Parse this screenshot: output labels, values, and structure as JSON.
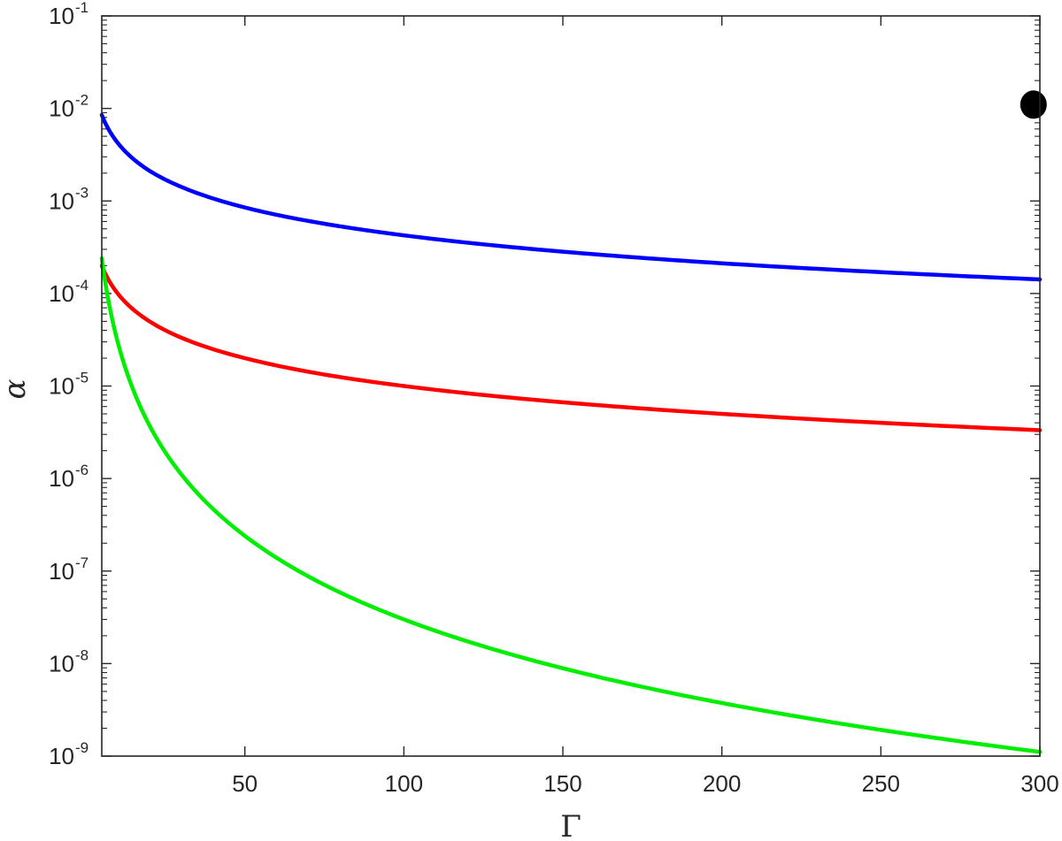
{
  "chart_data": {
    "type": "line",
    "title": "",
    "xlabel": "Γ",
    "ylabel": "α",
    "xlim": [
      5,
      300
    ],
    "ylim": [
      1e-09,
      0.1
    ],
    "yscale": "log",
    "grid": false,
    "x_ticks": [
      50,
      100,
      150,
      200,
      250,
      300
    ],
    "x_tick_labels": [
      "50",
      "100",
      "150",
      "200",
      "250",
      "300"
    ],
    "y_ticks": [
      1e-09,
      1e-08,
      1e-07,
      1e-06,
      1e-05,
      0.0001,
      0.001,
      0.01,
      0.1
    ],
    "y_tick_labels": [
      {
        "base": "10",
        "exp": "-9"
      },
      {
        "base": "10",
        "exp": "-8"
      },
      {
        "base": "10",
        "exp": "-7"
      },
      {
        "base": "10",
        "exp": "-6"
      },
      {
        "base": "10",
        "exp": "-5"
      },
      {
        "base": "10",
        "exp": "-4"
      },
      {
        "base": "10",
        "exp": "-3"
      },
      {
        "base": "10",
        "exp": "-2"
      },
      {
        "base": "10",
        "exp": "-1"
      }
    ],
    "series": [
      {
        "color": "#0000ff",
        "x": [
          5,
          10,
          20,
          30,
          50,
          75,
          100,
          150,
          200,
          250,
          300
        ],
        "y": [
          0.0085,
          0.00425,
          0.00212,
          0.00142,
          0.00085,
          0.000567,
          0.000425,
          0.000283,
          0.000212,
          0.00017,
          0.000142
        ]
      },
      {
        "color": "#ff0000",
        "x": [
          5,
          10,
          20,
          30,
          50,
          75,
          100,
          150,
          200,
          250,
          300
        ],
        "y": [
          0.0002,
          0.0001,
          5e-05,
          3.33e-05,
          2e-05,
          1.33e-05,
          1e-05,
          6.67e-06,
          5e-06,
          4e-06,
          3.33e-06
        ]
      },
      {
        "color": "#00ee00",
        "x": [
          5,
          7.5,
          10,
          15,
          20,
          30,
          50,
          75,
          100,
          150,
          200,
          250,
          300
        ],
        "y": [
          0.00024,
          7.1e-05,
          3e-05,
          8.9e-06,
          3.75e-06,
          1.11e-06,
          2.4e-07,
          7.1e-08,
          3e-08,
          8.9e-09,
          3.75e-09,
          1.92e-09,
          1.11e-09
        ]
      }
    ],
    "markers": [
      {
        "x": 298,
        "y": 0.011,
        "color": "#000000",
        "shape": "filled-circle"
      }
    ]
  }
}
